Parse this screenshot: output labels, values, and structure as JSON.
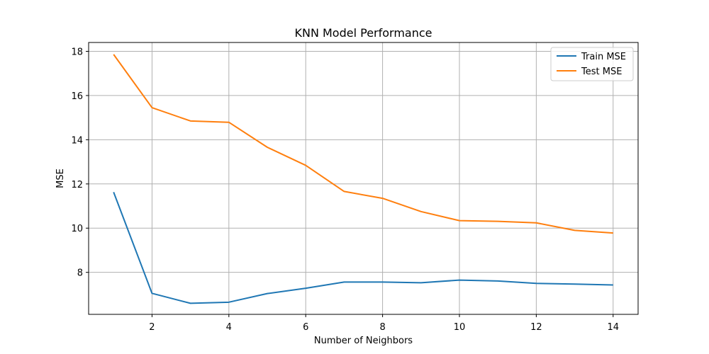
{
  "chart_data": {
    "type": "line",
    "title": "KNN Model Performance",
    "xlabel": "Number of Neighbors",
    "ylabel": "MSE",
    "x": [
      1,
      2,
      3,
      4,
      5,
      6,
      7,
      8,
      9,
      10,
      11,
      12,
      13,
      14
    ],
    "xlim": [
      0.35,
      14.65
    ],
    "ylim": [
      6.1,
      18.4
    ],
    "xticks": [
      "2",
      "4",
      "6",
      "8",
      "10",
      "12",
      "14"
    ],
    "xtick_values": [
      2,
      4,
      6,
      8,
      10,
      12,
      14
    ],
    "yticks": [
      "8",
      "10",
      "12",
      "14",
      "16",
      "18"
    ],
    "ytick_values": [
      8,
      10,
      12,
      14,
      16,
      18
    ],
    "grid": true,
    "legend_position": "top-right",
    "series": [
      {
        "name": "Train MSE",
        "color": "#1f77b4",
        "values": [
          11.63,
          7.05,
          6.6,
          6.65,
          7.04,
          7.28,
          7.56,
          7.56,
          7.53,
          7.65,
          7.61,
          7.5,
          7.47,
          7.43
        ]
      },
      {
        "name": "Test MSE",
        "color": "#ff7f0e",
        "values": [
          17.86,
          15.45,
          14.85,
          14.79,
          13.66,
          12.84,
          11.66,
          11.35,
          10.75,
          10.34,
          10.31,
          10.24,
          9.9,
          9.78
        ]
      }
    ]
  }
}
